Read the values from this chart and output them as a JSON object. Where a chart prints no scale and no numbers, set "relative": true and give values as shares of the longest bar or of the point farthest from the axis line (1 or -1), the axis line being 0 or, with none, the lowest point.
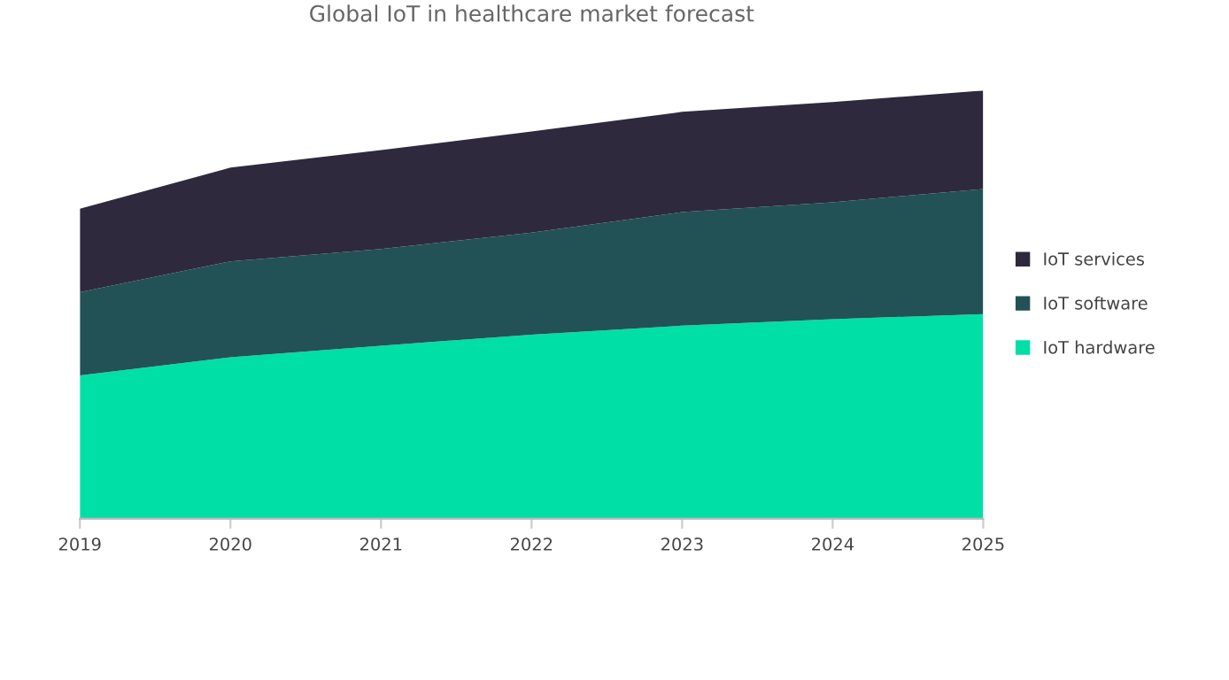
{
  "chart_data": {
    "type": "area",
    "stacked": true,
    "relative": true,
    "title": "Global IoT in healthcare market forecast",
    "x": [
      2019,
      2020,
      2021,
      2022,
      2023,
      2024,
      2025
    ],
    "xlim": [
      2019,
      2025
    ],
    "xticks": [
      2019,
      2020,
      2021,
      2022,
      2023,
      2024,
      2025
    ],
    "series": [
      {
        "name": "IoT hardware",
        "color": "#00dfa5",
        "values": [
          0.335,
          0.377,
          0.404,
          0.43,
          0.451,
          0.466,
          0.478
        ]
      },
      {
        "name": "IoT software",
        "color": "#225256",
        "values": [
          0.194,
          0.224,
          0.226,
          0.238,
          0.265,
          0.273,
          0.292
        ]
      },
      {
        "name": "IoT services",
        "color": "#2e293d",
        "values": [
          0.195,
          0.219,
          0.231,
          0.236,
          0.234,
          0.234,
          0.23
        ]
      }
    ],
    "legend": "right",
    "grid": false
  }
}
